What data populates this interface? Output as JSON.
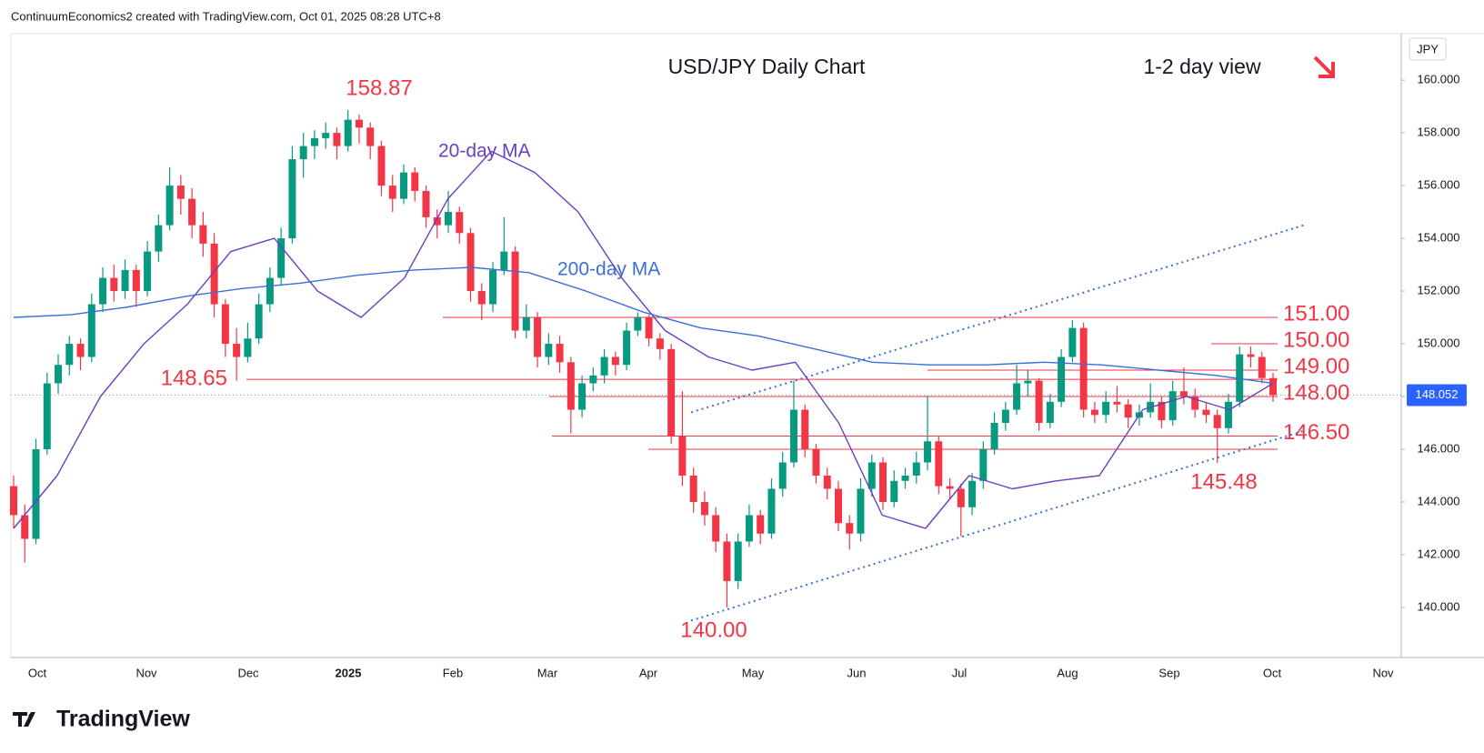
{
  "header": "ContinuumEconomics2 created with TradingView.com, Oct 01, 2025 08:28 UTC+8",
  "brand": "TradingView",
  "chart_data": {
    "type": "candlestick",
    "title": "USD/JPY Daily Chart",
    "subtitle": "1-2 day view",
    "currency": "JPY",
    "up_color": "#089981",
    "down_color": "#f23645",
    "ylim": [
      138.1,
      161.73
    ],
    "yticks": [
      {
        "value": 140,
        "label": "140.000"
      },
      {
        "value": 142,
        "label": "142.000"
      },
      {
        "value": 144,
        "label": "144.000"
      },
      {
        "value": 146,
        "label": "146.000"
      },
      {
        "value": 148,
        "label": "148.000"
      },
      {
        "value": 150,
        "label": "150.000"
      },
      {
        "value": 152,
        "label": "152.000"
      },
      {
        "value": 154,
        "label": "154.000"
      },
      {
        "value": 156,
        "label": "156.000"
      },
      {
        "value": 158,
        "label": "158.000"
      },
      {
        "value": 160,
        "label": "160.000"
      }
    ],
    "grid": false,
    "xticks": [
      "Oct",
      "Nov",
      "Dec",
      "2025",
      "Feb",
      "Mar",
      "Apr",
      "May",
      "Jun",
      "Jul",
      "Aug",
      "Sep",
      "Oct",
      "Nov"
    ],
    "candles": [
      [
        144.6,
        145.0,
        143.0,
        143.5
      ],
      [
        143.5,
        143.9,
        141.7,
        142.6
      ],
      [
        142.6,
        146.4,
        142.4,
        146.0
      ],
      [
        146.0,
        148.9,
        145.8,
        148.5
      ],
      [
        148.5,
        149.6,
        148.1,
        149.2
      ],
      [
        149.2,
        150.3,
        148.8,
        150.0
      ],
      [
        150.0,
        150.2,
        149.0,
        149.5
      ],
      [
        149.5,
        151.9,
        149.3,
        151.5
      ],
      [
        151.5,
        152.9,
        151.2,
        152.5
      ],
      [
        152.5,
        153.0,
        151.6,
        152.0
      ],
      [
        152.0,
        153.2,
        151.7,
        152.8
      ],
      [
        152.8,
        153.0,
        151.4,
        152.0
      ],
      [
        152.0,
        153.9,
        151.8,
        153.5
      ],
      [
        153.5,
        154.9,
        153.1,
        154.5
      ],
      [
        154.5,
        156.7,
        154.3,
        156.0
      ],
      [
        156.0,
        156.4,
        154.9,
        155.5
      ],
      [
        155.5,
        155.9,
        154.0,
        154.5
      ],
      [
        154.5,
        155.0,
        153.3,
        153.8
      ],
      [
        153.8,
        154.2,
        151.0,
        151.5
      ],
      [
        151.5,
        151.7,
        149.5,
        150.0
      ],
      [
        150.0,
        150.6,
        148.6,
        149.5
      ],
      [
        149.5,
        150.8,
        149.3,
        150.2
      ],
      [
        150.2,
        151.9,
        150.0,
        151.5
      ],
      [
        151.5,
        152.9,
        151.2,
        152.5
      ],
      [
        152.5,
        154.4,
        152.2,
        154.0
      ],
      [
        154.0,
        157.5,
        153.8,
        157.0
      ],
      [
        157.0,
        158.0,
        156.3,
        157.5
      ],
      [
        157.5,
        158.1,
        157.0,
        157.8
      ],
      [
        157.8,
        158.4,
        157.4,
        158.0
      ],
      [
        158.0,
        158.2,
        157.0,
        157.5
      ],
      [
        157.5,
        158.87,
        157.3,
        158.5
      ],
      [
        158.5,
        158.7,
        157.6,
        158.2
      ],
      [
        158.2,
        158.4,
        157.0,
        157.5
      ],
      [
        157.5,
        157.7,
        155.6,
        156.0
      ],
      [
        156.0,
        156.4,
        155.0,
        155.5
      ],
      [
        155.5,
        156.8,
        155.3,
        156.5
      ],
      [
        156.5,
        156.7,
        155.4,
        155.8
      ],
      [
        155.8,
        156.0,
        154.4,
        154.8
      ],
      [
        154.8,
        155.1,
        154.0,
        154.5
      ],
      [
        154.5,
        155.8,
        154.2,
        155.0
      ],
      [
        155.0,
        155.2,
        153.8,
        154.2
      ],
      [
        154.2,
        154.4,
        151.6,
        152.0
      ],
      [
        152.0,
        152.3,
        150.9,
        151.5
      ],
      [
        151.5,
        153.1,
        151.2,
        152.8
      ],
      [
        152.8,
        154.8,
        152.6,
        153.5
      ],
      [
        153.5,
        153.7,
        150.2,
        150.5
      ],
      [
        150.5,
        151.5,
        150.2,
        151.0
      ],
      [
        151.0,
        151.2,
        149.1,
        149.5
      ],
      [
        149.5,
        150.4,
        149.2,
        150.0
      ],
      [
        150.0,
        150.3,
        148.9,
        149.3
      ],
      [
        149.3,
        149.5,
        146.6,
        147.5
      ],
      [
        147.5,
        148.8,
        147.2,
        148.5
      ],
      [
        148.5,
        149.1,
        148.2,
        148.8
      ],
      [
        148.8,
        149.8,
        148.5,
        149.5
      ],
      [
        149.5,
        149.7,
        148.8,
        149.2
      ],
      [
        149.2,
        150.8,
        149.0,
        150.5
      ],
      [
        150.5,
        151.2,
        150.3,
        151.0
      ],
      [
        151.0,
        151.1,
        149.9,
        150.2
      ],
      [
        150.2,
        150.4,
        149.4,
        149.8
      ],
      [
        149.8,
        150.0,
        146.2,
        146.5
      ],
      [
        146.5,
        148.2,
        144.6,
        145.0
      ],
      [
        145.0,
        145.3,
        143.6,
        144.0
      ],
      [
        144.0,
        144.4,
        143.1,
        143.5
      ],
      [
        143.5,
        143.8,
        142.1,
        142.5
      ],
      [
        142.5,
        142.8,
        140.0,
        141.0
      ],
      [
        141.0,
        142.8,
        140.7,
        142.5
      ],
      [
        142.5,
        143.9,
        142.3,
        143.5
      ],
      [
        143.5,
        143.7,
        142.4,
        142.8
      ],
      [
        142.8,
        144.9,
        142.6,
        144.5
      ],
      [
        144.5,
        145.9,
        144.2,
        145.5
      ],
      [
        145.5,
        148.6,
        145.3,
        147.5
      ],
      [
        147.5,
        147.7,
        145.7,
        146.0
      ],
      [
        146.0,
        146.2,
        144.7,
        145.0
      ],
      [
        145.0,
        145.3,
        144.1,
        144.5
      ],
      [
        144.5,
        144.8,
        142.9,
        143.2
      ],
      [
        143.2,
        143.5,
        142.2,
        142.8
      ],
      [
        142.8,
        144.9,
        142.5,
        144.5
      ],
      [
        144.5,
        145.8,
        144.2,
        145.5
      ],
      [
        145.5,
        145.7,
        143.7,
        144.0
      ],
      [
        144.0,
        145.2,
        143.8,
        144.8
      ],
      [
        144.8,
        145.3,
        144.5,
        145.0
      ],
      [
        145.0,
        145.9,
        144.7,
        145.5
      ],
      [
        145.5,
        148.0,
        145.2,
        146.3
      ],
      [
        146.3,
        146.5,
        144.3,
        144.6
      ],
      [
        144.6,
        144.9,
        144.1,
        144.5
      ],
      [
        144.5,
        144.7,
        142.7,
        143.8
      ],
      [
        143.8,
        145.1,
        143.5,
        144.8
      ],
      [
        144.8,
        146.3,
        144.5,
        146.0
      ],
      [
        146.0,
        147.4,
        145.8,
        147.0
      ],
      [
        147.0,
        147.8,
        146.7,
        147.5
      ],
      [
        147.5,
        149.2,
        147.3,
        148.5
      ],
      [
        148.5,
        149.0,
        148.0,
        148.6
      ],
      [
        148.6,
        148.7,
        146.7,
        147.0
      ],
      [
        147.0,
        148.1,
        146.8,
        147.8
      ],
      [
        147.8,
        149.8,
        147.6,
        149.5
      ],
      [
        149.5,
        150.9,
        149.3,
        150.6
      ],
      [
        150.6,
        150.8,
        147.2,
        147.5
      ],
      [
        147.5,
        147.8,
        147.0,
        147.3
      ],
      [
        147.3,
        148.2,
        147.0,
        147.8
      ],
      [
        147.8,
        148.4,
        147.4,
        147.7
      ],
      [
        147.7,
        147.9,
        146.8,
        147.2
      ],
      [
        147.2,
        147.7,
        146.9,
        147.4
      ],
      [
        147.4,
        148.5,
        147.2,
        147.8
      ],
      [
        147.8,
        148.0,
        146.8,
        147.1
      ],
      [
        147.1,
        148.6,
        146.9,
        148.2
      ],
      [
        148.2,
        149.1,
        147.7,
        148.0
      ],
      [
        148.0,
        148.3,
        147.2,
        147.5
      ],
      [
        147.5,
        147.8,
        147.0,
        147.3
      ],
      [
        147.3,
        147.5,
        145.48,
        146.8
      ],
      [
        146.8,
        148.1,
        146.6,
        147.8
      ],
      [
        147.8,
        149.9,
        147.6,
        149.6
      ],
      [
        149.6,
        149.9,
        149.1,
        149.5
      ],
      [
        149.5,
        149.7,
        148.5,
        148.7
      ],
      [
        148.7,
        148.9,
        147.8,
        148.052
      ]
    ],
    "last_price": 148.052,
    "series": [
      {
        "name": "20-day MA",
        "color": "#6a3fc0",
        "values": [
          143.0,
          145.0,
          148.0,
          150.0,
          151.5,
          153.5,
          154.0,
          152.0,
          151.0,
          152.5,
          155.5,
          157.3,
          156.5,
          155.0,
          152.5,
          150.5,
          149.5,
          149.0,
          149.3,
          147.0,
          143.5,
          143.0,
          145.0,
          144.5,
          144.8,
          145.0,
          147.5,
          148.0,
          147.5,
          148.5
        ]
      },
      {
        "name": "200-day MA",
        "color": "#3b6fd8",
        "values": [
          151.0,
          151.1,
          151.4,
          151.8,
          152.1,
          152.3,
          152.6,
          152.8,
          152.9,
          152.7,
          152.0,
          151.2,
          150.6,
          150.3,
          149.8,
          149.3,
          149.2,
          149.2,
          149.3,
          149.2,
          149.0,
          148.8,
          148.5
        ]
      }
    ],
    "levels": [
      {
        "value": 151,
        "label": "151.00"
      },
      {
        "value": 150,
        "label": "150.00"
      },
      {
        "value": 149,
        "label": "149.00"
      },
      {
        "value": 148.65,
        "label": "148.65"
      },
      {
        "value": 148,
        "label": "148.00"
      },
      {
        "value": 146.5,
        "label": "146.50"
      },
      {
        "value": 146
      }
    ],
    "annotations": [
      {
        "value": 158.87,
        "label": "158.87"
      },
      {
        "value": 140,
        "label": "140.00"
      },
      {
        "value": 145.48,
        "label": "145.48"
      }
    ],
    "trendlines": [
      {
        "values": [
          147.4,
          154.5
        ]
      },
      {
        "values": [
          139.5,
          146.7
        ]
      }
    ]
  }
}
